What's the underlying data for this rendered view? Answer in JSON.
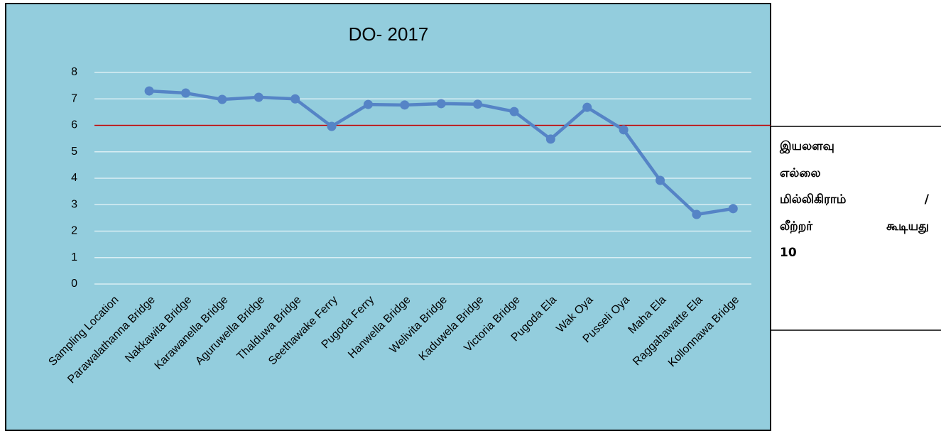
{
  "chart_data": {
    "type": "line",
    "title": "DO- 2017",
    "categories": [
      "Sampling Location",
      "Parawalathanna Bridge",
      "Nakkawita Bridge",
      "Karawanella Bridge",
      "Aguruwella Bridge",
      "Thalduwa Bridge",
      "Seethawake Ferry",
      "Pugoda Ferry",
      "Hanwella Bridge",
      "Welivita Bridge",
      "Kaduwela Bridge",
      "Victoria Bridge",
      "Pugoda Ela",
      "Wak Oya",
      "Pusseli Oya",
      "Maha Ela",
      "Raggahawatte Ela",
      "Kollonnawa Bridge"
    ],
    "series": [
      {
        "color": "#5584c6",
        "values": [
          null,
          7.3,
          7.22,
          6.98,
          7.06,
          7.0,
          5.96,
          6.79,
          6.77,
          6.82,
          6.8,
          6.52,
          5.48,
          6.68,
          5.83,
          3.92,
          2.63,
          2.85
        ]
      }
    ],
    "ylim": [
      0,
      8
    ],
    "yticks": [
      0,
      1,
      2,
      3,
      4,
      5,
      6,
      7,
      8
    ],
    "grid": true,
    "threshold": 6,
    "threshold_color": "#c00000"
  },
  "side_note": {
    "lines": [
      "இயலளவு",
      "எல்லை",
      "மில்லிகிராம் /",
      "லீற்றர் கூடியது",
      "10"
    ]
  }
}
